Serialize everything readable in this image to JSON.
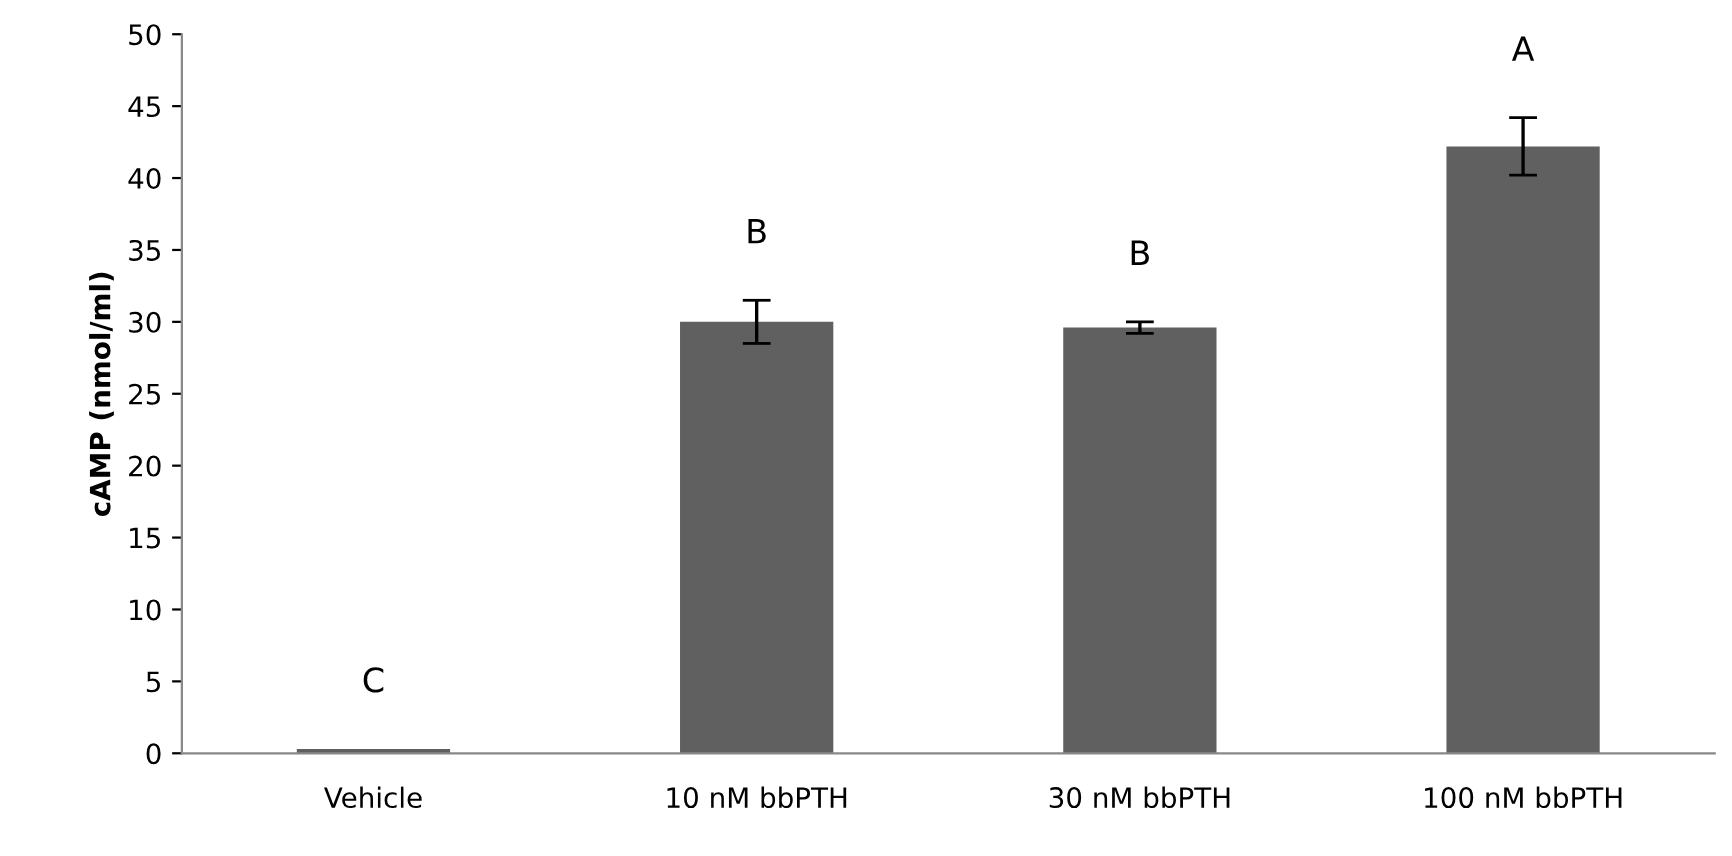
{
  "chart_data": {
    "type": "bar",
    "ylabel": "cAMP (nmol/ml)",
    "categories": [
      "Vehicle",
      "10 nM bbPTH",
      "30 nM bbPTH",
      "100 nM bbPTH"
    ],
    "values": [
      0.3,
      30.0,
      29.6,
      42.2
    ],
    "errors": [
      null,
      1.5,
      0.4,
      2.0
    ],
    "color": "#606060",
    "ylim": [
      0,
      50
    ],
    "yticks": [
      0,
      5,
      10,
      15,
      20,
      25,
      30,
      35,
      40,
      45,
      50
    ],
    "grid": false,
    "annotations": [
      "C",
      "B",
      "B",
      "A"
    ]
  }
}
